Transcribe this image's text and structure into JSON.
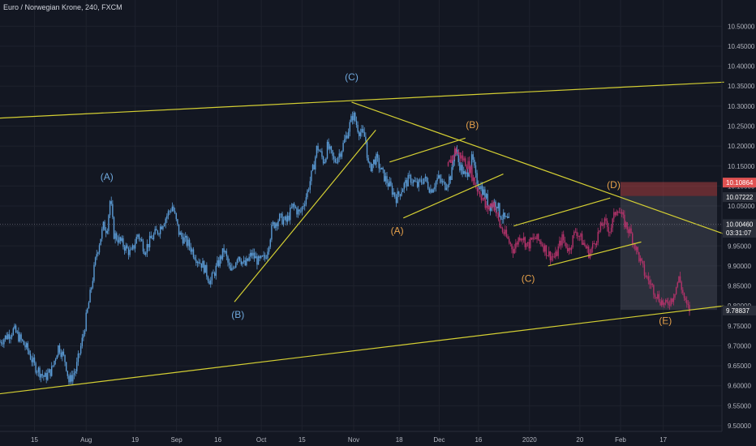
{
  "title": "Euro / Norwegian Krone, 240, FXCM",
  "colors": {
    "background": "#131722",
    "grid": "#1e222d",
    "candle_blue": "#5b9bd5",
    "candle_pink": "#b2336a",
    "trendline": "#d4cf33",
    "wave_blue": "#6fa8dc",
    "wave_orange": "#e5a04a",
    "axis_text": "#b2b5be"
  },
  "chart_data": {
    "type": "candlestick",
    "ylim": [
      9.5,
      10.525
    ],
    "y_ticks": [
      "10.50000",
      "10.45000",
      "10.40000",
      "10.35000",
      "10.30000",
      "10.25000",
      "10.20000",
      "10.15000",
      "10.10000",
      "10.05000",
      "10.00000",
      "9.95000",
      "9.90000",
      "9.85000",
      "9.80000",
      "9.75000",
      "9.70000",
      "9.65000",
      "9.60000",
      "9.55000",
      "9.50000"
    ],
    "x_ticks": [
      {
        "label": "15",
        "t": 0.05
      },
      {
        "label": "Aug",
        "t": 0.125
      },
      {
        "label": "19",
        "t": 0.196
      },
      {
        "label": "Sep",
        "t": 0.256
      },
      {
        "label": "16",
        "t": 0.316
      },
      {
        "label": "Oct",
        "t": 0.379
      },
      {
        "label": "15",
        "t": 0.438
      },
      {
        "label": "Nov",
        "t": 0.513
      },
      {
        "label": "18",
        "t": 0.579
      },
      {
        "label": "Dec",
        "t": 0.637
      },
      {
        "label": "16",
        "t": 0.694
      },
      {
        "label": "2020",
        "t": 0.768
      },
      {
        "label": "20",
        "t": 0.841
      },
      {
        "label": "Feb",
        "t": 0.9
      },
      {
        "label": "17",
        "t": 0.962
      }
    ],
    "price_path_blue": [
      [
        0,
        9.71
      ],
      [
        0.02,
        9.74
      ],
      [
        0.04,
        9.69
      ],
      [
        0.05,
        9.65
      ],
      [
        0.065,
        9.62
      ],
      [
        0.075,
        9.64
      ],
      [
        0.085,
        9.7
      ],
      [
        0.095,
        9.66
      ],
      [
        0.1,
        9.61
      ],
      [
        0.11,
        9.64
      ],
      [
        0.12,
        9.72
      ],
      [
        0.13,
        9.82
      ],
      [
        0.14,
        9.93
      ],
      [
        0.15,
        10.0
      ],
      [
        0.155,
        9.99
      ],
      [
        0.16,
        10.07
      ],
      [
        0.165,
        9.98
      ],
      [
        0.18,
        9.95
      ],
      [
        0.19,
        9.93
      ],
      [
        0.2,
        9.98
      ],
      [
        0.21,
        9.94
      ],
      [
        0.22,
        9.97
      ],
      [
        0.23,
        9.99
      ],
      [
        0.24,
        10.02
      ],
      [
        0.25,
        10.05
      ],
      [
        0.26,
        9.98
      ],
      [
        0.275,
        9.95
      ],
      [
        0.285,
        9.92
      ],
      [
        0.295,
        9.9
      ],
      [
        0.305,
        9.86
      ],
      [
        0.315,
        9.9
      ],
      [
        0.325,
        9.94
      ],
      [
        0.335,
        9.88
      ],
      [
        0.345,
        9.93
      ],
      [
        0.355,
        9.9
      ],
      [
        0.365,
        9.93
      ],
      [
        0.375,
        9.91
      ],
      [
        0.385,
        9.92
      ],
      [
        0.395,
        10.0
      ],
      [
        0.405,
        10.02
      ],
      [
        0.415,
        10.01
      ],
      [
        0.425,
        10.05
      ],
      [
        0.435,
        10.03
      ],
      [
        0.445,
        10.08
      ],
      [
        0.455,
        10.15
      ],
      [
        0.46,
        10.2
      ],
      [
        0.47,
        10.16
      ],
      [
        0.475,
        10.2
      ],
      [
        0.485,
        10.16
      ],
      [
        0.495,
        10.19
      ],
      [
        0.505,
        10.24
      ],
      [
        0.512,
        10.28
      ],
      [
        0.52,
        10.24
      ],
      [
        0.53,
        10.22
      ],
      [
        0.535,
        10.14
      ],
      [
        0.545,
        10.17
      ],
      [
        0.555,
        10.13
      ],
      [
        0.565,
        10.1
      ],
      [
        0.575,
        10.07
      ],
      [
        0.585,
        10.1
      ],
      [
        0.595,
        10.12
      ],
      [
        0.605,
        10.1
      ],
      [
        0.615,
        10.12
      ],
      [
        0.625,
        10.09
      ],
      [
        0.635,
        10.12
      ],
      [
        0.645,
        10.1
      ],
      [
        0.655,
        10.13
      ],
      [
        0.66,
        10.2
      ],
      [
        0.665,
        10.16
      ],
      [
        0.675,
        10.12
      ],
      [
        0.685,
        10.17
      ],
      [
        0.69,
        10.12
      ],
      [
        0.7,
        10.09
      ],
      [
        0.71,
        10.05
      ],
      [
        0.72,
        10.06
      ],
      [
        0.725,
        10.03
      ],
      [
        0.73,
        10.02
      ],
      [
        0.738,
        10.01
      ]
    ],
    "price_path_pink": [
      [
        0.65,
        10.15
      ],
      [
        0.66,
        10.19
      ],
      [
        0.67,
        10.17
      ],
      [
        0.68,
        10.15
      ],
      [
        0.69,
        10.1
      ],
      [
        0.7,
        10.07
      ],
      [
        0.705,
        10.04
      ],
      [
        0.715,
        10.06
      ],
      [
        0.725,
        10.0
      ],
      [
        0.735,
        9.97
      ],
      [
        0.745,
        9.94
      ],
      [
        0.755,
        9.98
      ],
      [
        0.765,
        9.95
      ],
      [
        0.775,
        9.97
      ],
      [
        0.785,
        9.96
      ],
      [
        0.795,
        9.93
      ],
      [
        0.805,
        9.92
      ],
      [
        0.815,
        9.97
      ],
      [
        0.825,
        9.94
      ],
      [
        0.835,
        9.99
      ],
      [
        0.845,
        9.96
      ],
      [
        0.855,
        9.93
      ],
      [
        0.865,
        9.97
      ],
      [
        0.875,
        10.01
      ],
      [
        0.885,
        9.99
      ],
      [
        0.895,
        10.05
      ],
      [
        0.905,
        10.01
      ],
      [
        0.915,
        9.98
      ],
      [
        0.925,
        9.93
      ],
      [
        0.935,
        9.88
      ],
      [
        0.945,
        9.85
      ],
      [
        0.955,
        9.82
      ],
      [
        0.965,
        9.8
      ],
      [
        0.975,
        9.82
      ],
      [
        0.985,
        9.87
      ],
      [
        0.995,
        9.8
      ],
      [
        1,
        9.79
      ]
    ],
    "trendlines": [
      {
        "x1": 0,
        "y1": 10.27,
        "x2": 1.05,
        "y2": 10.36
      },
      {
        "x1": 0,
        "y1": 9.58,
        "x2": 1.05,
        "y2": 9.8
      },
      {
        "x1": 0.51,
        "y1": 10.31,
        "x2": 1.05,
        "y2": 9.98
      },
      {
        "x1": 0.34,
        "y1": 9.81,
        "x2": 0.545,
        "y2": 10.24
      },
      {
        "x1": 0.565,
        "y1": 10.16,
        "x2": 0.675,
        "y2": 10.22
      },
      {
        "x1": 0.585,
        "y1": 10.02,
        "x2": 0.73,
        "y2": 10.13
      },
      {
        "x1": 0.745,
        "y1": 10.0,
        "x2": 0.885,
        "y2": 10.07
      },
      {
        "x1": 0.795,
        "y1": 9.9,
        "x2": 0.93,
        "y2": 9.96
      }
    ],
    "wave_labels": [
      {
        "text": "(C)",
        "t": 0.51,
        "y": 10.365,
        "color": "blue"
      },
      {
        "text": "(A)",
        "t": 0.155,
        "y": 10.115,
        "color": "blue"
      },
      {
        "text": "(B)",
        "t": 0.345,
        "y": 9.77,
        "color": "blue"
      },
      {
        "text": "(B)",
        "t": 0.685,
        "y": 10.245,
        "color": "orange"
      },
      {
        "text": "(A)",
        "t": 0.576,
        "y": 9.98,
        "color": "orange"
      },
      {
        "text": "(C)",
        "t": 0.766,
        "y": 9.86,
        "color": "orange"
      },
      {
        "text": "(D)",
        "t": 0.89,
        "y": 10.095,
        "color": "orange"
      },
      {
        "text": "(E)",
        "t": 0.965,
        "y": 9.755,
        "color": "orange"
      }
    ],
    "current_price_line": 10.0046,
    "price_tags": [
      {
        "label": "10.10864",
        "value": 10.10864,
        "bg": "#e05252"
      },
      {
        "label": "10.07222",
        "value": 10.07222,
        "bg": "#2a2e39"
      },
      {
        "label": "10.00460",
        "value": 10.0046,
        "bg": "#2a2e39"
      },
      {
        "label": "03:31:07",
        "value": 9.983,
        "bg": "#2a2e39"
      },
      {
        "label": "9.78837",
        "value": 9.78837,
        "bg": "#2a2e39"
      }
    ],
    "boxes": [
      {
        "t1": 0.9,
        "t2": 1.04,
        "y1": 10.11,
        "y2": 10.075,
        "fill": "rgba(200,70,70,0.45)"
      },
      {
        "t1": 0.9,
        "t2": 1.04,
        "y1": 10.075,
        "y2": 9.79,
        "fill": "rgba(120,125,140,0.25)"
      }
    ]
  }
}
